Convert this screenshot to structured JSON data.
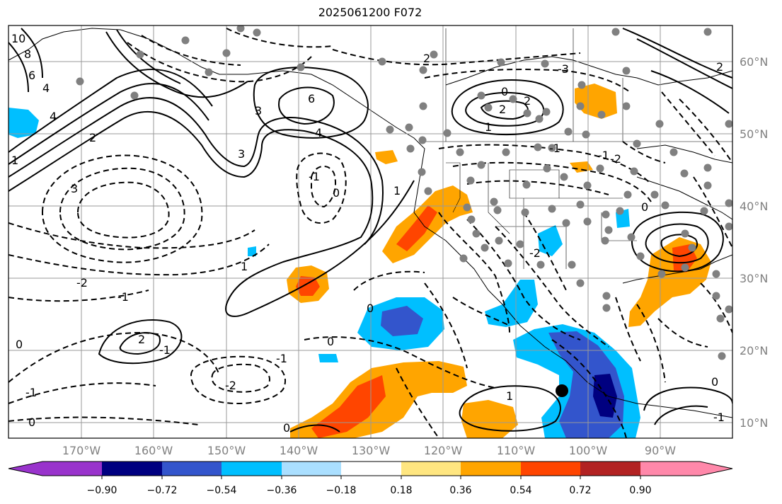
{
  "title": "2025061200 F072",
  "map": {
    "lon_labels": [
      "170°W",
      "160°W",
      "150°W",
      "140°W",
      "130°W",
      "120°W",
      "110°W",
      "100°W",
      "90°W"
    ],
    "lat_labels": [
      "60°N",
      "50°N",
      "40°N",
      "30°N",
      "20°N",
      "10°N"
    ],
    "contour_labels": [
      "10",
      "8",
      "6",
      "4",
      "4",
      "3",
      "2",
      "1",
      "6",
      "4",
      "3",
      "3",
      "2",
      "1",
      "0",
      "2",
      "0",
      "-1",
      "-2",
      "-3",
      "2",
      "-1",
      "0",
      "-1",
      "-2",
      "-1",
      "1",
      "2",
      "0",
      "-2",
      "-1",
      "1",
      "-1",
      "0",
      "-1",
      "-2",
      "0",
      "0",
      "0",
      "-1",
      "1",
      "2",
      "0"
    ],
    "colors": {
      "ocean": "#ffffff",
      "grid": "#999999",
      "contour": "#000000",
      "station": "#808080"
    }
  },
  "colorbar": {
    "ticks": [
      "−0.90",
      "−0.72",
      "−0.54",
      "−0.36",
      "−0.18",
      "0.18",
      "0.36",
      "0.54",
      "0.72",
      "0.90"
    ],
    "colors": [
      "#9933cc",
      "#000080",
      "#3355cc",
      "#00bfff",
      "#aadfff",
      "#ffffff",
      "#ffe680",
      "#ffa500",
      "#ff4500",
      "#b22222",
      "#ff88aa"
    ]
  }
}
